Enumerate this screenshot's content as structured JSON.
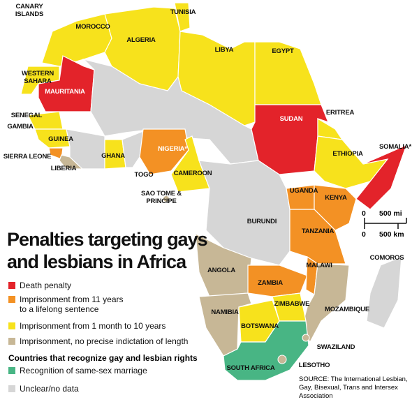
{
  "title_lines": [
    "Penalties targeting gays",
    "and lesbians in Africa"
  ],
  "legend": {
    "items": [
      {
        "label": "Death penalty",
        "color": "#e3232a"
      },
      {
        "label": "Imprisonment from 11 years to a lifelong sentence",
        "color": "#f39124"
      },
      {
        "label": "Imprisonment from 1 month to 10 years",
        "color": "#f7e21c"
      },
      {
        "label": "Imprisonment, no precise indictation of length",
        "color": "#c7b796"
      }
    ],
    "rights_heading": "Countries that recognize gay and lesbian rights",
    "rights_items": [
      {
        "label": "Recognition of same-sex marriage",
        "color": "#48b584"
      }
    ],
    "unclear": {
      "label": "Unclear/no data",
      "color": "#d6d6d6"
    }
  },
  "scale": {
    "zero": "0",
    "mi": "500 mi",
    "km": "500 km"
  },
  "source": "SOURCE: The International Lesbian, Gay, Bisexual, Trans and Intersex Association",
  "countries": [
    "CANARY ISLANDS",
    "MOROCCO",
    "TUNISIA",
    "ALGERIA",
    "LIBYA",
    "EGYPT",
    "WESTERN SAHARA",
    "MAURITANIA",
    "SENEGAL",
    "GAMBIA",
    "GUINEA",
    "SIERRA LEONE",
    "LIBERIA",
    "GHANA",
    "TOGO",
    "NIGERIA*",
    "CAMEROON",
    "SUDAN",
    "ERITREA",
    "ETHIOPIA",
    "SOMALIA*",
    "SAO TOME & PRINCIPE",
    "UGANDA",
    "KENYA",
    "BURUNDI",
    "TANZANIA",
    "COMOROS",
    "ANGOLA",
    "ZAMBIA",
    "MALAWI",
    "ZIMBABWE",
    "NAMIBIA",
    "MOZAMBIQUE",
    "BOTSWANA",
    "SWAZILAND",
    "SOUTH AFRICA",
    "LESOTHO"
  ]
}
